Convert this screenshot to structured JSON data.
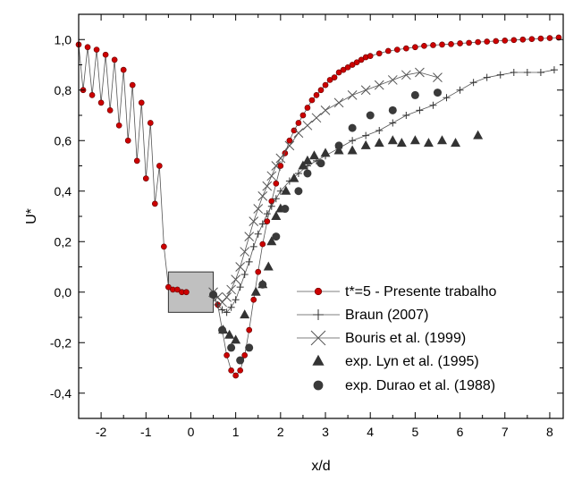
{
  "chart_data": {
    "type": "scatter",
    "xlabel": "x/d",
    "ylabel": "U*",
    "xlim": [
      -2.5,
      8.3
    ],
    "ylim": [
      -0.5,
      1.1
    ],
    "xticks": [
      -2,
      -1,
      0,
      1,
      2,
      3,
      4,
      5,
      6,
      7,
      8
    ],
    "yticks": [
      -0.4,
      -0.2,
      0.0,
      0.2,
      0.4,
      0.6,
      0.8,
      1.0
    ],
    "xtick_labels": [
      "-2",
      "-1",
      "0",
      "1",
      "2",
      "3",
      "4",
      "5",
      "6",
      "7",
      "8"
    ],
    "ytick_labels": [
      "-0,4",
      "-0,2",
      "0,0",
      "0,2",
      "0,4",
      "0,6",
      "0,8",
      "1,0"
    ],
    "grid": false,
    "legend_position": "bottom-right",
    "cylinder": {
      "x0": -0.5,
      "x1": 0.5,
      "y0": -0.08,
      "y1": 0.08,
      "color": "#c0c0c0"
    },
    "series": [
      {
        "name": "t*=5 - Presente trabalho",
        "marker": "circle-line",
        "color": "#cc0000",
        "x": [
          -2.5,
          -2.4,
          -2.3,
          -2.2,
          -2.1,
          -2.0,
          -1.9,
          -1.8,
          -1.7,
          -1.6,
          -1.5,
          -1.4,
          -1.3,
          -1.2,
          -1.1,
          -1.0,
          -0.9,
          -0.8,
          -0.7,
          -0.6,
          -0.5,
          -0.4,
          -0.3,
          -0.2,
          -0.1,
          0.5,
          0.6,
          0.7,
          0.8,
          0.9,
          1.0,
          1.1,
          1.2,
          1.3,
          1.4,
          1.5,
          1.6,
          1.7,
          1.8,
          1.9,
          2.0,
          2.1,
          2.2,
          2.3,
          2.4,
          2.5,
          2.6,
          2.7,
          2.8,
          2.9,
          3.0,
          3.1,
          3.2,
          3.3,
          3.4,
          3.5,
          3.6,
          3.7,
          3.8,
          3.9,
          4.0,
          4.2,
          4.4,
          4.6,
          4.8,
          5.0,
          5.2,
          5.4,
          5.6,
          5.8,
          6.0,
          6.2,
          6.4,
          6.6,
          6.8,
          7.0,
          7.2,
          7.4,
          7.6,
          7.8,
          8.0,
          8.2
        ],
        "y": [
          0.98,
          0.8,
          0.97,
          0.78,
          0.96,
          0.75,
          0.94,
          0.72,
          0.92,
          0.66,
          0.88,
          0.6,
          0.82,
          0.52,
          0.75,
          0.45,
          0.67,
          0.35,
          0.5,
          0.18,
          0.02,
          0.01,
          0.01,
          0.0,
          0.0,
          -0.01,
          -0.05,
          -0.15,
          -0.25,
          -0.31,
          -0.33,
          -0.31,
          -0.25,
          -0.15,
          -0.03,
          0.08,
          0.19,
          0.28,
          0.36,
          0.43,
          0.5,
          0.55,
          0.6,
          0.64,
          0.67,
          0.7,
          0.73,
          0.76,
          0.78,
          0.8,
          0.82,
          0.84,
          0.85,
          0.87,
          0.88,
          0.89,
          0.9,
          0.91,
          0.92,
          0.93,
          0.935,
          0.945,
          0.955,
          0.96,
          0.965,
          0.97,
          0.975,
          0.978,
          0.98,
          0.982,
          0.985,
          0.987,
          0.99,
          0.992,
          0.994,
          0.996,
          0.998,
          1.0,
          1.002,
          1.004,
          1.006,
          1.008
        ]
      },
      {
        "name": "Braun (2007)",
        "marker": "plus",
        "color": "#333333",
        "x": [
          0.5,
          0.6,
          0.7,
          0.8,
          0.9,
          1.0,
          1.1,
          1.2,
          1.3,
          1.4,
          1.5,
          1.6,
          1.7,
          1.8,
          1.9,
          2.0,
          2.2,
          2.4,
          2.6,
          2.8,
          3.0,
          3.3,
          3.6,
          3.9,
          4.2,
          4.5,
          4.8,
          5.1,
          5.4,
          5.7,
          6.0,
          6.3,
          6.6,
          6.9,
          7.2,
          7.5,
          7.8,
          8.1
        ],
        "y": [
          -0.02,
          -0.05,
          -0.07,
          -0.08,
          -0.06,
          -0.03,
          0.02,
          0.07,
          0.12,
          0.18,
          0.23,
          0.27,
          0.31,
          0.34,
          0.37,
          0.4,
          0.44,
          0.47,
          0.5,
          0.52,
          0.54,
          0.57,
          0.6,
          0.62,
          0.64,
          0.67,
          0.7,
          0.72,
          0.74,
          0.77,
          0.8,
          0.83,
          0.85,
          0.86,
          0.87,
          0.87,
          0.87,
          0.88
        ]
      },
      {
        "name": "Bouris et al. (1999)",
        "marker": "cross",
        "color": "#555555",
        "x": [
          0.5,
          0.6,
          0.7,
          0.8,
          0.9,
          1.0,
          1.1,
          1.2,
          1.3,
          1.4,
          1.5,
          1.6,
          1.7,
          1.8,
          1.9,
          2.0,
          2.2,
          2.4,
          2.6,
          2.8,
          3.0,
          3.3,
          3.6,
          3.9,
          4.2,
          4.5,
          4.8,
          5.1,
          5.5
        ],
        "y": [
          0.0,
          -0.02,
          -0.04,
          -0.02,
          0.01,
          0.05,
          0.1,
          0.16,
          0.22,
          0.28,
          0.33,
          0.38,
          0.42,
          0.46,
          0.5,
          0.53,
          0.58,
          0.63,
          0.66,
          0.69,
          0.72,
          0.75,
          0.78,
          0.8,
          0.82,
          0.84,
          0.86,
          0.87,
          0.85
        ]
      },
      {
        "name": "exp. Lyn et al. (1995)",
        "marker": "triangle",
        "color": "#333333",
        "x": [
          0.72,
          0.86,
          1.0,
          1.2,
          1.45,
          1.6,
          1.73,
          1.8,
          1.9,
          2.0,
          2.12,
          2.3,
          2.5,
          2.6,
          2.75,
          3.0,
          3.3,
          3.6,
          3.9,
          4.2,
          4.5,
          4.7,
          5.0,
          5.3,
          5.6,
          5.9,
          6.4
        ],
        "y": [
          -0.15,
          -0.17,
          -0.19,
          -0.09,
          0.0,
          0.03,
          0.1,
          0.2,
          0.3,
          0.33,
          0.4,
          0.45,
          0.5,
          0.52,
          0.54,
          0.55,
          0.56,
          0.56,
          0.58,
          0.59,
          0.6,
          0.59,
          0.6,
          0.59,
          0.6,
          0.59,
          0.62
        ]
      },
      {
        "name": "exp. Durao et al. (1988)",
        "marker": "circle",
        "color": "#3a3a3a",
        "x": [
          0.5,
          0.7,
          0.9,
          1.1,
          1.3,
          1.6,
          1.9,
          2.1,
          2.4,
          2.6,
          2.9,
          3.3,
          3.6,
          4.0,
          4.5,
          5.0,
          5.5
        ],
        "y": [
          -0.01,
          -0.15,
          -0.22,
          -0.27,
          -0.22,
          0.03,
          0.22,
          0.33,
          0.4,
          0.47,
          0.51,
          0.58,
          0.65,
          0.7,
          0.72,
          0.78,
          0.79
        ]
      }
    ]
  }
}
